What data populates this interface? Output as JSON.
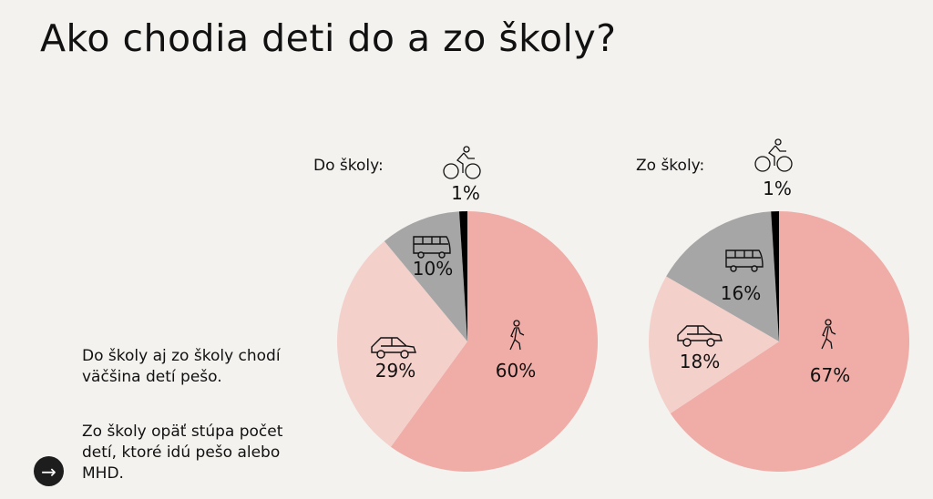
{
  "title": "Ako chodia deti do a zo školy?",
  "notes": [
    "Do školy aj zo školy chodí väčšina detí pešo.",
    "Zo školy opäť stúpa počet detí, ktoré idú pešo alebo MHD."
  ],
  "nav": {
    "icon": "arrow-right-icon",
    "glyph": "→"
  },
  "colors": {
    "walk": "#f0aca6",
    "car": "#f4d0cb",
    "bus": "#a6a6a6",
    "bike": "#000000",
    "background": "#f3f2ef"
  },
  "chart_data": [
    {
      "type": "pie",
      "title": "Do školy:",
      "categories": [
        "pešo",
        "auto",
        "MHD",
        "bicykel"
      ],
      "icons": [
        "walking-icon",
        "car-icon",
        "bus-icon",
        "bicycle-icon"
      ],
      "values": [
        60,
        29,
        10,
        1
      ],
      "labels": [
        "60%",
        "29%",
        "10%",
        "1%"
      ]
    },
    {
      "type": "pie",
      "title": "Zo školy:",
      "categories": [
        "pešo",
        "auto",
        "MHD",
        "bicykel"
      ],
      "icons": [
        "walking-icon",
        "car-icon",
        "bus-icon",
        "bicycle-icon"
      ],
      "values": [
        67,
        18,
        16,
        1
      ],
      "labels": [
        "67%",
        "18%",
        "16%",
        "1%"
      ]
    }
  ]
}
